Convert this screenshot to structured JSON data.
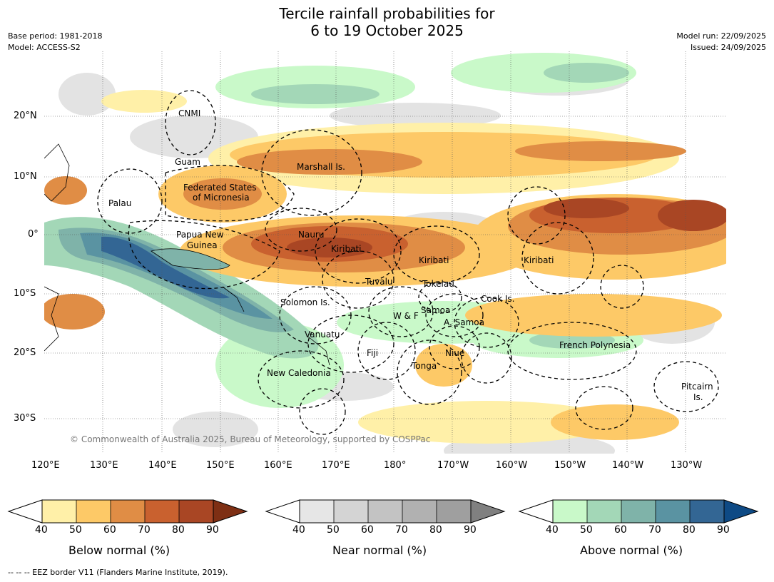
{
  "header": {
    "title_line1": "Tercile rainfall probabilities for",
    "title_line2": "6 to 19 October 2025",
    "base_period": "Base period: 1981-2018",
    "model": "Model: ACCESS-S2",
    "model_run": "Model run: 22/09/2025",
    "issued": "Issued: 24/09/2025"
  },
  "map": {
    "lat_ticks": [
      "20°N",
      "10°N",
      "0°",
      "10°S",
      "20°S",
      "30°S"
    ],
    "lon_ticks": [
      "120°E",
      "130°E",
      "140°E",
      "150°E",
      "160°E",
      "170°E",
      "180°",
      "170°W",
      "160°W",
      "150°W",
      "140°W",
      "130°W"
    ],
    "region_labels": [
      "CNMI",
      "Guam",
      "Marshall Is.",
      "Federated States",
      "of Micronesia",
      "Palau",
      "Papua New",
      "Guinea",
      "Nauru",
      "Kiribati",
      "Kiribati",
      "Kiribati",
      "Tuvalu",
      "Tokelau",
      "Solomon Is.",
      "Samoa",
      "W & F",
      "A. Samoa",
      "Cook Is.",
      "Vanuatu",
      "Fiji",
      "Niue",
      "Tonga",
      "French Polynesia",
      "New Caledonia",
      "Pitcairn",
      "Is."
    ],
    "copyright": "© Commonwealth of Australia 2025, Bureau of Meteorology, supported by COSPPac"
  },
  "colorbars": [
    {
      "title": "Below normal (%)",
      "ticks": [
        "40",
        "50",
        "60",
        "70",
        "80",
        "90"
      ],
      "colors": [
        "#fff0a8",
        "#fdc967",
        "#e08d45",
        "#c9612f",
        "#a94624",
        "#7e2f14"
      ]
    },
    {
      "title": "Near normal (%)",
      "ticks": [
        "40",
        "50",
        "60",
        "70",
        "80",
        "90"
      ],
      "colors": [
        "#e6e6e6",
        "#d4d4d4",
        "#c3c3c3",
        "#b1b1b1",
        "#9f9f9f",
        "#808080"
      ]
    },
    {
      "title": "Above normal (%)",
      "ticks": [
        "40",
        "50",
        "60",
        "70",
        "80",
        "90"
      ],
      "colors": [
        "#c9f9c9",
        "#a3d7b7",
        "#7fb3a9",
        "#5a93a2",
        "#336694",
        "#0e4a85"
      ]
    }
  ],
  "footnote": "--  --  -- EEZ border V11 (Flanders Marine Institute, 2019)."
}
